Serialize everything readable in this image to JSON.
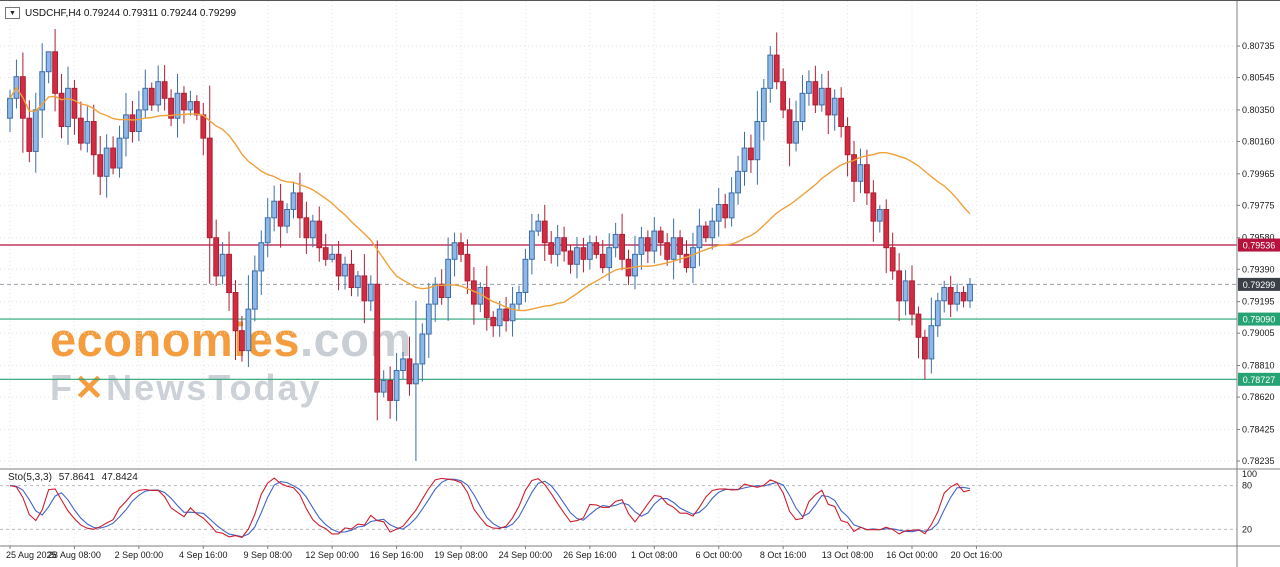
{
  "header": {
    "symbol_ohlc": "USDCHF,H4 0.79244 0.79311 0.79244 0.79299",
    "collapse_icon": "▼"
  },
  "watermark": {
    "brand": "economies",
    "tld": ".com",
    "line2_pre": "F",
    "line2_x": "✕",
    "line2_post": "NewsToday"
  },
  "indicator": {
    "name": "Sto(5,3,3)",
    "value_main": "57.8641",
    "value_signal": "47.8424"
  },
  "chart_data": {
    "type": "candlestick",
    "symbol": "USDCHF",
    "timeframe": "H4",
    "last_ohlc": {
      "open": 0.79244,
      "high": 0.79311,
      "low": 0.79244,
      "close": 0.79299
    },
    "ylim": [
      0.78235,
      0.80735
    ],
    "price_ticks": [
      "0.80735",
      "0.80545",
      "0.80350",
      "0.80160",
      "0.79965",
      "0.79775",
      "0.79580",
      "0.79390",
      "0.79195",
      "0.79005",
      "0.78810",
      "0.78620",
      "0.78425",
      "0.78235"
    ],
    "time_ticks": [
      "25 Aug 2025",
      "28 Aug 08:00",
      "2 Sep 00:00",
      "4 Sep 16:00",
      "9 Sep 08:00",
      "12 Sep 00:00",
      "16 Sep 16:00",
      "19 Sep 08:00",
      "24 Sep 00:00",
      "26 Sep 16:00",
      "1 Oct 08:00",
      "6 Oct 00:00",
      "8 Oct 16:00",
      "13 Oct 08:00",
      "16 Oct 00:00",
      "20 Oct 16:00"
    ],
    "open_first": 0.803,
    "closes": [
      0.8042,
      0.8055,
      0.803,
      0.801,
      0.8035,
      0.8058,
      0.807,
      0.8045,
      0.8025,
      0.8048,
      0.803,
      0.8015,
      0.8028,
      0.8008,
      0.7995,
      0.8012,
      0.8,
      0.8018,
      0.8032,
      0.8022,
      0.8035,
      0.8048,
      0.8038,
      0.8052,
      0.8042,
      0.803,
      0.8045,
      0.8035,
      0.804,
      0.8032,
      0.8018,
      0.7958,
      0.7935,
      0.7948,
      0.7925,
      0.7902,
      0.789,
      0.7915,
      0.7938,
      0.7955,
      0.797,
      0.798,
      0.7965,
      0.7975,
      0.7985,
      0.797,
      0.7958,
      0.7968,
      0.7952,
      0.7945,
      0.7948,
      0.7935,
      0.7942,
      0.7928,
      0.7935,
      0.792,
      0.793,
      0.7865,
      0.7872,
      0.786,
      0.7878,
      0.7885,
      0.787,
      0.7882,
      0.79,
      0.7918,
      0.793,
      0.7922,
      0.7945,
      0.7955,
      0.7948,
      0.7932,
      0.7918,
      0.7928,
      0.791,
      0.7905,
      0.7915,
      0.7908,
      0.7918,
      0.7925,
      0.7945,
      0.7962,
      0.7968,
      0.7955,
      0.7948,
      0.7958,
      0.795,
      0.7942,
      0.7952,
      0.7945,
      0.7955,
      0.7948,
      0.794,
      0.7952,
      0.796,
      0.7945,
      0.7935,
      0.7948,
      0.7958,
      0.795,
      0.7962,
      0.7955,
      0.7945,
      0.7958,
      0.7948,
      0.794,
      0.7952,
      0.7965,
      0.7958,
      0.7968,
      0.7978,
      0.797,
      0.7985,
      0.7998,
      0.8012,
      0.8005,
      0.8028,
      0.8048,
      0.8068,
      0.8052,
      0.8035,
      0.8015,
      0.8028,
      0.8045,
      0.8052,
      0.8038,
      0.8048,
      0.8032,
      0.8042,
      0.8025,
      0.8008,
      0.7992,
      0.8002,
      0.7985,
      0.7968,
      0.7975,
      0.7952,
      0.7938,
      0.792,
      0.7932,
      0.7912,
      0.7898,
      0.7885,
      0.7905,
      0.792,
      0.7928,
      0.7918,
      0.7925,
      0.792,
      0.79299
    ],
    "wick_overrides": [
      {
        "index": 6,
        "high": 0.807
      },
      {
        "index": 63,
        "high": 0.792,
        "low": 0.78235
      },
      {
        "index": 118,
        "high": 0.80735
      },
      {
        "index": 142,
        "low": 0.78727
      }
    ],
    "hlines": [
      {
        "price": 0.79536,
        "label": "0.79536",
        "color": "#b5123e"
      },
      {
        "price": 0.7909,
        "label": "0.79090",
        "color": "#26a374"
      },
      {
        "price": 0.78727,
        "label": "0.78727",
        "color": "#26a374"
      }
    ],
    "current_price": {
      "value": 0.79299,
      "label": "0.79299",
      "box_color": "#3b3f46",
      "line_color": "#9aa0a8"
    },
    "ma": {
      "type": "sma",
      "window": 30,
      "color": "#efa13a"
    },
    "stochastic": {
      "k": 5,
      "slowing": 3,
      "d": 3,
      "levels": [
        20,
        80
      ],
      "axis_labels": [
        "100",
        "80",
        "20"
      ],
      "last_main": 57.8641,
      "last_signal": 47.8424,
      "main_color": "#cc1f2f",
      "signal_color": "#3e66c8"
    },
    "colors": {
      "bull_fill": "#8fb8e8",
      "bull_stroke": "#3a6ea8",
      "bear_fill": "#d02c42",
      "bear_stroke": "#b01e32",
      "grid": "#e3e3e8",
      "axis_text": "#1a1a1a",
      "frame": "#7f7f7f"
    }
  }
}
